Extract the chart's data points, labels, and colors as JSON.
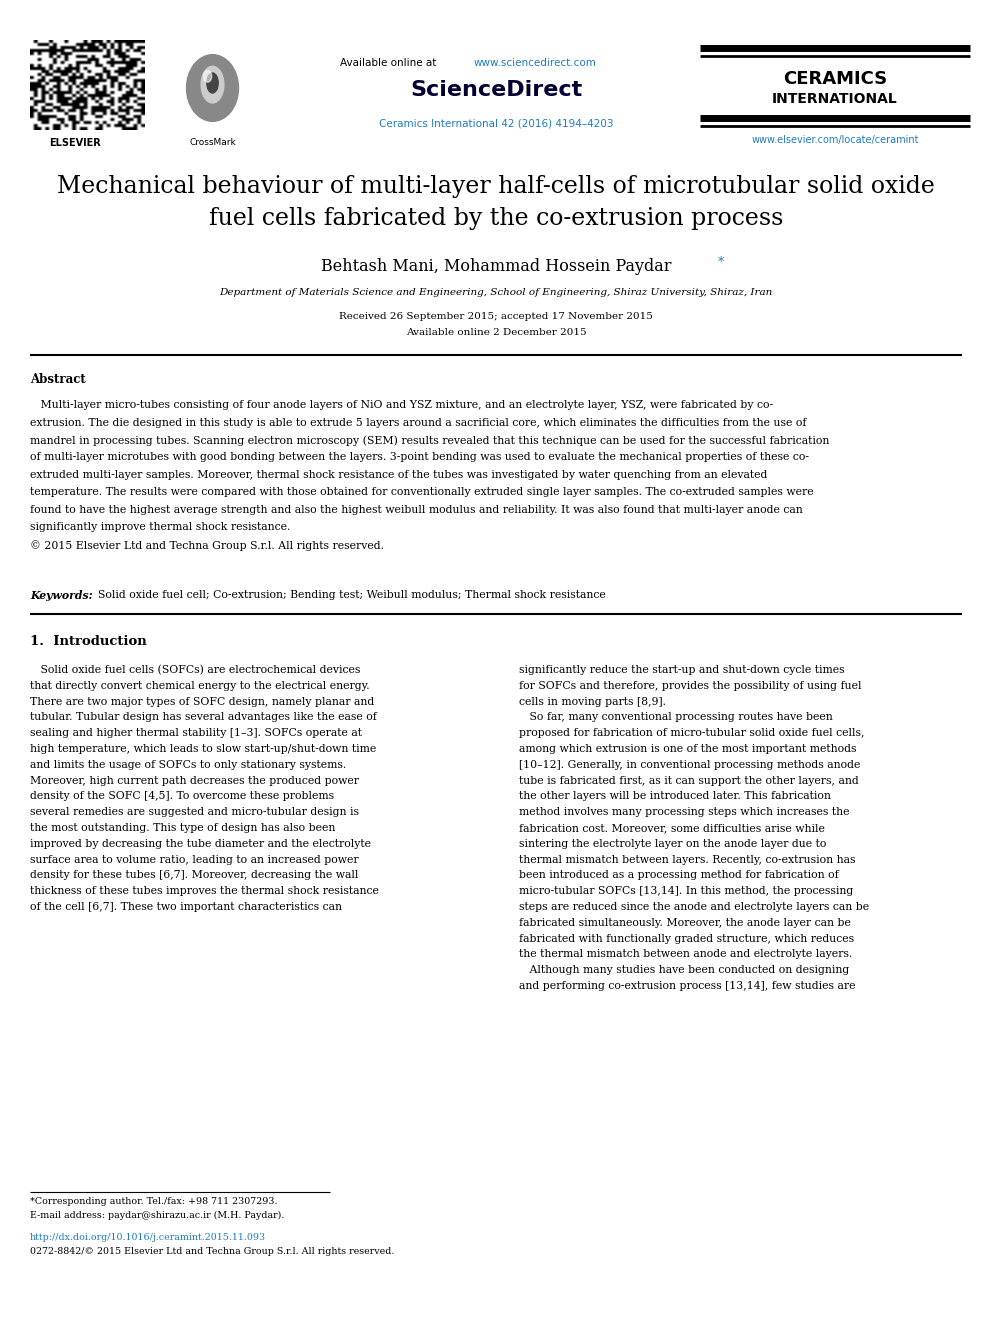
{
  "bg_color": "#ffffff",
  "title_line1": "Mechanical behaviour of multi-layer half-cells of microtubular solid oxide",
  "title_line2": "fuel cells fabricated by the co-extrusion process",
  "authors_main": "Behtash Mani, Mohammad Hossein Paydar",
  "affiliation": "Department of Materials Science and Engineering, School of Engineering, Shiraz University, Shiraz, Iran",
  "received": "Received 26 September 2015; accepted 17 November 2015",
  "available_online": "Available online 2 December 2015",
  "abstract_title": "Abstract",
  "abstract_para": "   Multi-layer micro-tubes consisting of four anode layers of NiO and YSZ mixture, and an electrolyte layer, YSZ, were fabricated by co-extrusion. The die designed in this study is able to extrude 5 layers around a sacrificial core, which eliminates the difficulties from the use of mandrel in processing tubes. Scanning electron microscopy (SEM) results revealed that this technique can be used for the successful fabrication of multi-layer microtubes with good bonding between the layers. 3-point bending was used to evaluate the mechanical properties of these co-extruded multi-layer samples. Moreover, thermal shock resistance of the tubes was investigated by water quenching from an elevated temperature. The results were compared with those obtained for conventionally extruded single layer samples. The co-extruded samples were found to have the highest average strength and also the highest weibull modulus and reliability. It was also found that multi-layer anode can significantly improve thermal shock resistance.",
  "abstract_copy": "© 2015 Elsevier Ltd and Techna Group S.r.l. All rights reserved.",
  "keywords_label": "Keywords:",
  "keywords_text": "Solid oxide fuel cell; Co-extrusion; Bending test; Weibull modulus; Thermal shock resistance",
  "section1_title": "1.  Introduction",
  "intro_left_lines": [
    "   Solid oxide fuel cells (SOFCs) are electrochemical devices",
    "that directly convert chemical energy to the electrical energy.",
    "There are two major types of SOFC design, namely planar and",
    "tubular. Tubular design has several advantages like the ease of",
    "sealing and higher thermal stability [1–3]. SOFCs operate at",
    "high temperature, which leads to slow start-up/shut-down time",
    "and limits the usage of SOFCs to only stationary systems.",
    "Moreover, high current path decreases the produced power",
    "density of the SOFC [4,5]. To overcome these problems",
    "several remedies are suggested and micro-tubular design is",
    "the most outstanding. This type of design has also been",
    "improved by decreasing the tube diameter and the electrolyte",
    "surface area to volume ratio, leading to an increased power",
    "density for these tubes [6,7]. Moreover, decreasing the wall",
    "thickness of these tubes improves the thermal shock resistance",
    "of the cell [6,7]. These two important characteristics can"
  ],
  "intro_right_lines": [
    "significantly reduce the start-up and shut-down cycle times",
    "for SOFCs and therefore, provides the possibility of using fuel",
    "cells in moving parts [8,9].",
    "   So far, many conventional processing routes have been",
    "proposed for fabrication of micro-tubular solid oxide fuel cells,",
    "among which extrusion is one of the most important methods",
    "[10–12]. Generally, in conventional processing methods anode",
    "tube is fabricated first, as it can support the other layers, and",
    "the other layers will be introduced later. This fabrication",
    "method involves many processing steps which increases the",
    "fabrication cost. Moreover, some difficulties arise while",
    "sintering the electrolyte layer on the anode layer due to",
    "thermal mismatch between layers. Recently, co-extrusion has",
    "been introduced as a processing method for fabrication of",
    "micro-tubular SOFCs [13,14]. In this method, the processing",
    "steps are reduced since the anode and electrolyte layers can be",
    "fabricated simultaneously. Moreover, the anode layer can be",
    "fabricated with functionally graded structure, which reduces",
    "the thermal mismatch between anode and electrolyte layers.",
    "   Although many studies have been conducted on designing",
    "and performing co-extrusion process [13,14], few studies are"
  ],
  "header_available_prefix": "Available online at ",
  "header_available_url": "www.sciencedirect.com",
  "header_sciencedirect": "ScienceDirect",
  "header_journal": "Ceramics International 42 (2016) 4194–4203",
  "header_ceramics": "CERAMICS",
  "header_international": "INTERNATIONAL",
  "header_url": "www.elsevier.com/locate/ceramint",
  "color_blue": "#1f7bbf",
  "color_dark": "#000000",
  "footer_line": "*Corresponding author. Tel./fax: +98 711 2307293.",
  "footer_email": "E-mail address: paydar@shirazu.ac.ir (M.H. Paydar).",
  "footer_doi": "http://dx.doi.org/10.1016/j.ceramint.2015.11.093",
  "footer_issn": "0272-8842/© 2015 Elsevier Ltd and Techna Group S.r.l. All rights reserved."
}
